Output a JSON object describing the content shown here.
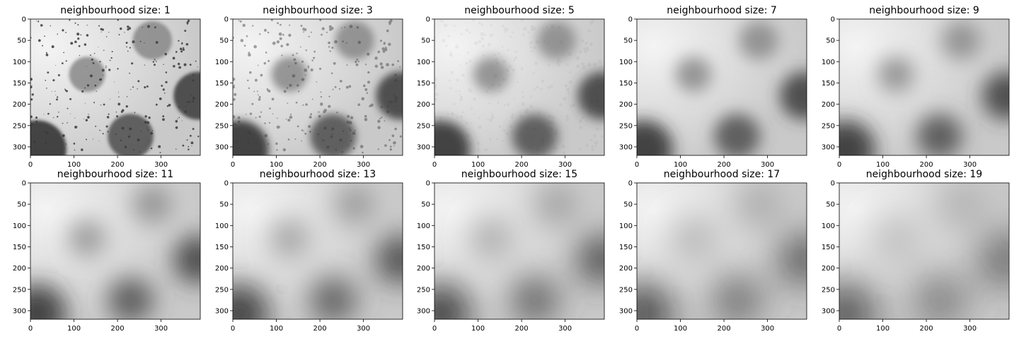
{
  "chart_data": [
    {
      "type": "heatmap",
      "title": "neighbourhood size: 1",
      "size": 1,
      "xticks": [
        "0",
        "100",
        "200",
        "300"
      ],
      "yticks": [
        "0",
        "50",
        "100",
        "150",
        "200",
        "250",
        "300"
      ],
      "xlim": [
        0,
        390
      ],
      "ylim": [
        320,
        0
      ],
      "colormap": "gray"
    },
    {
      "type": "heatmap",
      "title": "neighbourhood size: 3",
      "size": 3,
      "xticks": [
        "0",
        "100",
        "200",
        "300"
      ],
      "yticks": [
        "0",
        "50",
        "100",
        "150",
        "200",
        "250",
        "300"
      ],
      "xlim": [
        0,
        390
      ],
      "ylim": [
        320,
        0
      ],
      "colormap": "gray"
    },
    {
      "type": "heatmap",
      "title": "neighbourhood size: 5",
      "size": 5,
      "xticks": [
        "0",
        "100",
        "200",
        "300"
      ],
      "yticks": [
        "0",
        "50",
        "100",
        "150",
        "200",
        "250",
        "300"
      ],
      "xlim": [
        0,
        390
      ],
      "ylim": [
        320,
        0
      ],
      "colormap": "gray"
    },
    {
      "type": "heatmap",
      "title": "neighbourhood size: 7",
      "size": 7,
      "xticks": [
        "0",
        "100",
        "200",
        "300"
      ],
      "yticks": [
        "0",
        "50",
        "100",
        "150",
        "200",
        "250",
        "300"
      ],
      "xlim": [
        0,
        390
      ],
      "ylim": [
        320,
        0
      ],
      "colormap": "gray"
    },
    {
      "type": "heatmap",
      "title": "neighbourhood size: 9",
      "size": 9,
      "xticks": [
        "0",
        "100",
        "200",
        "300"
      ],
      "yticks": [
        "0",
        "50",
        "100",
        "150",
        "200",
        "250",
        "300"
      ],
      "xlim": [
        0,
        390
      ],
      "ylim": [
        320,
        0
      ],
      "colormap": "gray"
    },
    {
      "type": "heatmap",
      "title": "neighbourhood size: 11",
      "size": 11,
      "xticks": [
        "0",
        "100",
        "200",
        "300"
      ],
      "yticks": [
        "0",
        "50",
        "100",
        "150",
        "200",
        "250",
        "300"
      ],
      "xlim": [
        0,
        390
      ],
      "ylim": [
        320,
        0
      ],
      "colormap": "gray"
    },
    {
      "type": "heatmap",
      "title": "neighbourhood size: 13",
      "size": 13,
      "xticks": [
        "0",
        "100",
        "200",
        "300"
      ],
      "yticks": [
        "0",
        "50",
        "100",
        "150",
        "200",
        "250",
        "300"
      ],
      "xlim": [
        0,
        390
      ],
      "ylim": [
        320,
        0
      ],
      "colormap": "gray"
    },
    {
      "type": "heatmap",
      "title": "neighbourhood size: 15",
      "size": 15,
      "xticks": [
        "0",
        "100",
        "200",
        "300"
      ],
      "yticks": [
        "0",
        "50",
        "100",
        "150",
        "200",
        "250",
        "300"
      ],
      "xlim": [
        0,
        390
      ],
      "ylim": [
        320,
        0
      ],
      "colormap": "gray"
    },
    {
      "type": "heatmap",
      "title": "neighbourhood size: 17",
      "size": 17,
      "xticks": [
        "0",
        "100",
        "200",
        "300"
      ],
      "yticks": [
        "0",
        "50",
        "100",
        "150",
        "200",
        "250",
        "300"
      ],
      "xlim": [
        0,
        390
      ],
      "ylim": [
        320,
        0
      ],
      "colormap": "gray"
    },
    {
      "type": "heatmap",
      "title": "neighbourhood size: 19",
      "size": 19,
      "xticks": [
        "0",
        "100",
        "200",
        "300"
      ],
      "yticks": [
        "0",
        "50",
        "100",
        "150",
        "200",
        "250",
        "300"
      ],
      "xlim": [
        0,
        390
      ],
      "ylim": [
        320,
        0
      ],
      "colormap": "gray"
    }
  ]
}
